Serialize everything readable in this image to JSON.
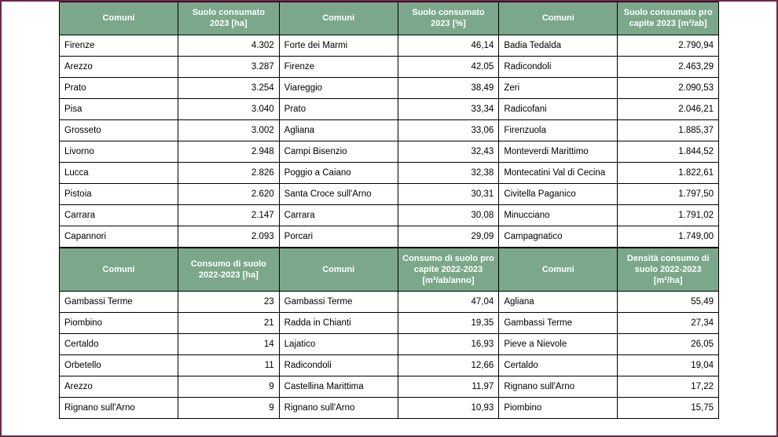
{
  "colors": {
    "header_bg": "#7ba88a",
    "header_text": "#ffffff",
    "border": "#000000",
    "page_bg": "#d4c4cc",
    "frame_border": "#6a2a4a",
    "cell_bg": "#ffffff"
  },
  "typography": {
    "font_family": "Arial, sans-serif",
    "header_fontsize": 11,
    "cell_fontsize": 11.5
  },
  "table_top": {
    "headers": [
      "Comuni",
      "Suolo consumato 2023 [ha]",
      "Comuni",
      "Suolo consumato 2023 [%]",
      "Comuni",
      "Suolo consumato pro capite 2023 [m²/ab]"
    ],
    "rows": [
      [
        "Firenze",
        "4.302",
        "Forte dei Marmi",
        "46,14",
        "Badia Tedalda",
        "2.790,94"
      ],
      [
        "Arezzo",
        "3.287",
        "Firenze",
        "42,05",
        "Radicondoli",
        "2.463,29"
      ],
      [
        "Prato",
        "3.254",
        "Viareggio",
        "38,49",
        "Zeri",
        "2.090,53"
      ],
      [
        "Pisa",
        "3.040",
        "Prato",
        "33,34",
        "Radicofani",
        "2.046,21"
      ],
      [
        "Grosseto",
        "3.002",
        "Agliana",
        "33,06",
        "Firenzuola",
        "1.885,37"
      ],
      [
        "Livorno",
        "2.948",
        "Campi Bisenzio",
        "32,43",
        "Monteverdi Marittimo",
        "1.844,52"
      ],
      [
        "Lucca",
        "2.826",
        "Poggio a Caiano",
        "32,38",
        "Montecatini Val di Cecina",
        "1.822,61"
      ],
      [
        "Pistoia",
        "2.620",
        "Santa Croce sull'Arno",
        "30,31",
        "Civitella Paganico",
        "1.797,50"
      ],
      [
        "Carrara",
        "2.147",
        "Carrara",
        "30,08",
        "Minucciano",
        "1.791,02"
      ],
      [
        "Capannori",
        "2.093",
        "Porcari",
        "29,09",
        "Campagnatico",
        "1.749,00"
      ]
    ]
  },
  "table_bottom": {
    "headers": [
      "Comuni",
      "Consumo di suolo 2022-2023 [ha]",
      "Comuni",
      "Consumo di suolo pro capite 2022-2023 [m²/ab/anno]",
      "Comuni",
      "Densità consumo di suolo 2022-2023 [m²/ha]"
    ],
    "rows": [
      [
        "Gambassi Terme",
        "23",
        "Gambassi Terme",
        "47,04",
        "Agliana",
        "55,49"
      ],
      [
        "Piombino",
        "21",
        "Radda in Chianti",
        "19,35",
        "Gambassi Terme",
        "27,34"
      ],
      [
        "Certaldo",
        "14",
        "Lajatico",
        "16,93",
        "Pieve a Nievole",
        "26,05"
      ],
      [
        "Orbetello",
        "11",
        "Radicondoli",
        "12,66",
        "Certaldo",
        "19,04"
      ],
      [
        "Arezzo",
        "9",
        "Castellina Marittima",
        "11,97",
        "Rignano sull'Arno",
        "17,22"
      ],
      [
        "Rignano sull'Arno",
        "9",
        "Rignano sull'Arno",
        "10,93",
        "Piombino",
        "15,75"
      ]
    ]
  }
}
